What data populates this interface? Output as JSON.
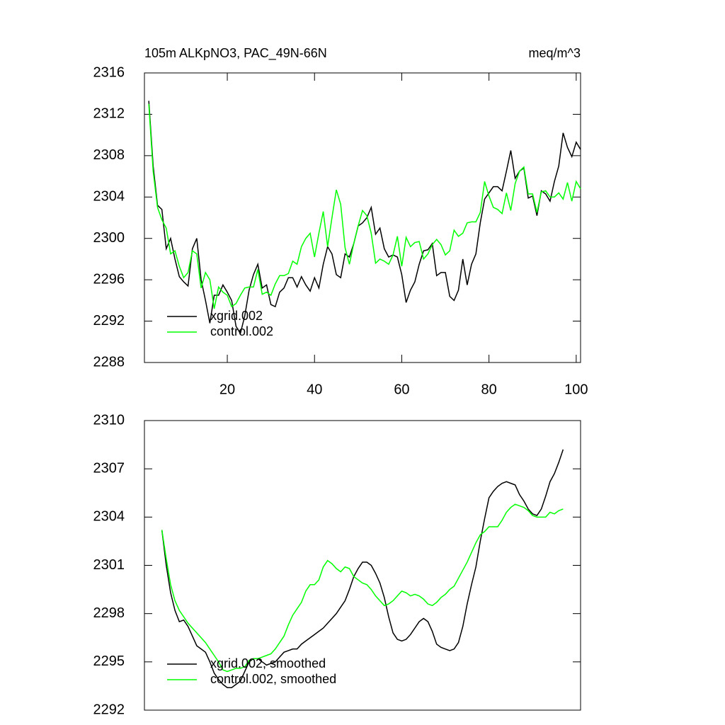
{
  "chart_data": [
    {
      "type": "line",
      "title": "105m ALKpNO3, PAC_49N-66N",
      "units": "meq/m^3",
      "xlim": [
        1,
        101
      ],
      "xticks": [
        20,
        40,
        60,
        80,
        100
      ],
      "ylim": [
        2288,
        2316
      ],
      "yticks": [
        2288,
        2292,
        2296,
        2300,
        2304,
        2308,
        2312,
        2316
      ],
      "legend": "lower left",
      "x": [
        2,
        3,
        4,
        5,
        6,
        7,
        8,
        9,
        10,
        11,
        12,
        13,
        14,
        15,
        16,
        17,
        18,
        19,
        20,
        21,
        22,
        23,
        24,
        25,
        26,
        27,
        28,
        29,
        30,
        31,
        32,
        33,
        34,
        35,
        36,
        37,
        38,
        39,
        40,
        41,
        42,
        43,
        44,
        45,
        46,
        47,
        48,
        49,
        50,
        51,
        52,
        53,
        54,
        55,
        56,
        57,
        58,
        59,
        60,
        61,
        62,
        63,
        64,
        65,
        66,
        67,
        68,
        69,
        70,
        71,
        72,
        73,
        74,
        75,
        76,
        77,
        78,
        79,
        80,
        81,
        82,
        83,
        84,
        85,
        86,
        87,
        88,
        89,
        90,
        91,
        92,
        93,
        94,
        95,
        96,
        97,
        98,
        99,
        100,
        101
      ],
      "series": [
        {
          "name": "xgrid.002",
          "color": "#000000",
          "values": [
            2313.3,
            2307,
            2303.2,
            2302.8,
            2299,
            2300,
            2298,
            2296.3,
            2295.8,
            2295.4,
            2299,
            2300,
            2296,
            2294,
            2291.8,
            2294.5,
            2294.5,
            2295.5,
            2294.8,
            2294,
            2291.5,
            2290.8,
            2292.5,
            2295,
            2296.5,
            2297.5,
            2295.2,
            2295.5,
            2293.6,
            2293.4,
            2294.8,
            2295.2,
            2296.2,
            2296.2,
            2295.3,
            2296.3,
            2295.5,
            2294.9,
            2296.2,
            2295.2,
            2297.5,
            2299.2,
            2298.5,
            2296.5,
            2296.2,
            2298.5,
            2298.2,
            2299.5,
            2301.2,
            2301.5,
            2302,
            2303,
            2300.4,
            2301,
            2299,
            2298.2,
            2298.4,
            2298.2,
            2296.5,
            2293.8,
            2295,
            2295.8,
            2297.5,
            2298.8,
            2298.9,
            2299.5,
            2296.4,
            2296.7,
            2296.7,
            2294.4,
            2294,
            2295,
            2298,
            2295.5,
            2297.5,
            2298.5,
            2301.5,
            2303.8,
            2304.4,
            2305,
            2305,
            2304.6,
            2306.5,
            2308.5,
            2305.8,
            2306.5,
            2306.8,
            2303.9,
            2304.1,
            2302.2,
            2304.6,
            2304.3,
            2303.6,
            2305.5,
            2307,
            2310.2,
            2308.8,
            2307.9,
            2309.3,
            2308.6
          ]
        },
        {
          "name": "control.002",
          "color": "#00ff00",
          "values": [
            2313,
            2306.5,
            2303,
            2301.8,
            2301,
            2298.5,
            2298.8,
            2297.3,
            2296.2,
            2296.7,
            2298.8,
            2298.5,
            2295.2,
            2296.7,
            2296,
            2293.2,
            2295.3,
            2294.8,
            2294.5,
            2293.4,
            2293.7,
            2294.5,
            2295.2,
            2295.3,
            2295.3,
            2297,
            2294.6,
            2294.8,
            2294.5,
            2295.6,
            2296.4,
            2296.4,
            2296.6,
            2297.8,
            2297.5,
            2299.2,
            2300,
            2300.5,
            2298.2,
            2300.5,
            2302.6,
            2299.2,
            2302,
            2304.7,
            2303.3,
            2299.1,
            2297.5,
            2299.5,
            2301.2,
            2302.7,
            2302.2,
            2300.5,
            2297.6,
            2298,
            2297.8,
            2297.5,
            2298.4,
            2300.2,
            2297.3,
            2300.1,
            2299.2,
            2299.6,
            2299.7,
            2298,
            2298.5,
            2299.4,
            2299.9,
            2299.4,
            2298.4,
            2298.8,
            2300.8,
            2300.2,
            2300.5,
            2301.5,
            2301.6,
            2301.6,
            2302.5,
            2305.5,
            2304.1,
            2303,
            2302.8,
            2302.4,
            2304.4,
            2302.7,
            2305.3,
            2306.5,
            2306.9,
            2304.3,
            2304.3,
            2302.5,
            2304.5,
            2304.6,
            2304,
            2304,
            2304.4,
            2303.8,
            2305.4,
            2303.6,
            2305.5,
            2304.8
          ]
        }
      ]
    },
    {
      "type": "line",
      "xlim": [
        1,
        101
      ],
      "ylim": [
        2292,
        2310
      ],
      "yticks": [
        2292,
        2295,
        2298,
        2301,
        2304,
        2307,
        2310
      ],
      "legend": "lower left",
      "x": [
        5,
        6,
        7,
        8,
        9,
        10,
        11,
        12,
        13,
        14,
        15,
        16,
        17,
        18,
        19,
        20,
        21,
        22,
        23,
        24,
        25,
        26,
        27,
        28,
        29,
        30,
        31,
        32,
        33,
        34,
        35,
        36,
        37,
        38,
        39,
        40,
        41,
        42,
        43,
        44,
        45,
        46,
        47,
        48,
        49,
        50,
        51,
        52,
        53,
        54,
        55,
        56,
        57,
        58,
        59,
        60,
        61,
        62,
        63,
        64,
        65,
        66,
        67,
        68,
        69,
        70,
        71,
        72,
        73,
        74,
        75,
        76,
        77,
        78,
        79,
        80,
        81,
        82,
        83,
        84,
        85,
        86,
        87,
        88,
        89,
        90,
        91,
        92,
        93,
        94,
        95,
        96,
        97
      ],
      "series": [
        {
          "name": "xgrid.002, smoothed",
          "color": "#000000",
          "values": [
            2303.2,
            2301,
            2299.3,
            2298.2,
            2297.5,
            2297.6,
            2297.2,
            2296.6,
            2296,
            2295.8,
            2295.6,
            2295,
            2294.3,
            2293.9,
            2293.6,
            2293.4,
            2293.4,
            2293.6,
            2293.8,
            2294.4,
            2295,
            2295.2,
            2295.2,
            2295,
            2294.8,
            2294.9,
            2295,
            2295.3,
            2295.6,
            2295.7,
            2295.8,
            2295.8,
            2296.1,
            2296.3,
            2296.5,
            2296.7,
            2296.9,
            2297.1,
            2297.4,
            2297.7,
            2298,
            2298.4,
            2298.8,
            2299.5,
            2300.3,
            2300.8,
            2301.2,
            2301.2,
            2301,
            2300.5,
            2299.9,
            2299,
            2297.8,
            2296.8,
            2296.4,
            2296.3,
            2296.4,
            2296.7,
            2297.1,
            2297.5,
            2297.7,
            2297.5,
            2296.9,
            2296.1,
            2295.9,
            2295.8,
            2295.7,
            2295.8,
            2296.2,
            2297.2,
            2298.6,
            2299.8,
            2300.9,
            2302.5,
            2303.9,
            2305.2,
            2305.6,
            2305.9,
            2306.1,
            2306.2,
            2306.1,
            2306,
            2305.4,
            2305,
            2304.5,
            2304.2,
            2304.1,
            2304.5,
            2305.3,
            2306.2,
            2306.7,
            2307.4,
            2308.2
          ]
        },
        {
          "name": "control.002, smoothed",
          "color": "#00ff00",
          "values": [
            2303.2,
            2301.4,
            2299.8,
            2298.8,
            2298.2,
            2297.8,
            2297.4,
            2297.1,
            2296.8,
            2296.5,
            2296.2,
            2295.8,
            2295.4,
            2295,
            2294.5,
            2294.4,
            2294.5,
            2294.6,
            2294.6,
            2294.7,
            2295.1,
            2295.2,
            2295.2,
            2295.3,
            2295.4,
            2295.5,
            2295.8,
            2296.2,
            2296.6,
            2297.3,
            2297.9,
            2298.3,
            2298.7,
            2299.4,
            2299.8,
            2299.8,
            2300.1,
            2300.9,
            2301.3,
            2301.1,
            2300.8,
            2300.6,
            2300.9,
            2300.8,
            2300.3,
            2300.1,
            2299.9,
            2299.8,
            2299.5,
            2299.1,
            2298.8,
            2298.5,
            2298.6,
            2298.8,
            2299.1,
            2299.4,
            2299.3,
            2299.1,
            2299.2,
            2299.1,
            2298.9,
            2298.6,
            2298.5,
            2298.7,
            2299,
            2299.2,
            2299.5,
            2299.7,
            2300.2,
            2300.7,
            2301.2,
            2301.8,
            2302.4,
            2302.9,
            2303.1,
            2303.4,
            2303.4,
            2303.4,
            2303.8,
            2304.3,
            2304.6,
            2304.8,
            2304.7,
            2304.6,
            2304.4,
            2304.1,
            2304,
            2304,
            2304,
            2304.3,
            2304.2,
            2304.4,
            2304.5
          ]
        }
      ]
    }
  ]
}
